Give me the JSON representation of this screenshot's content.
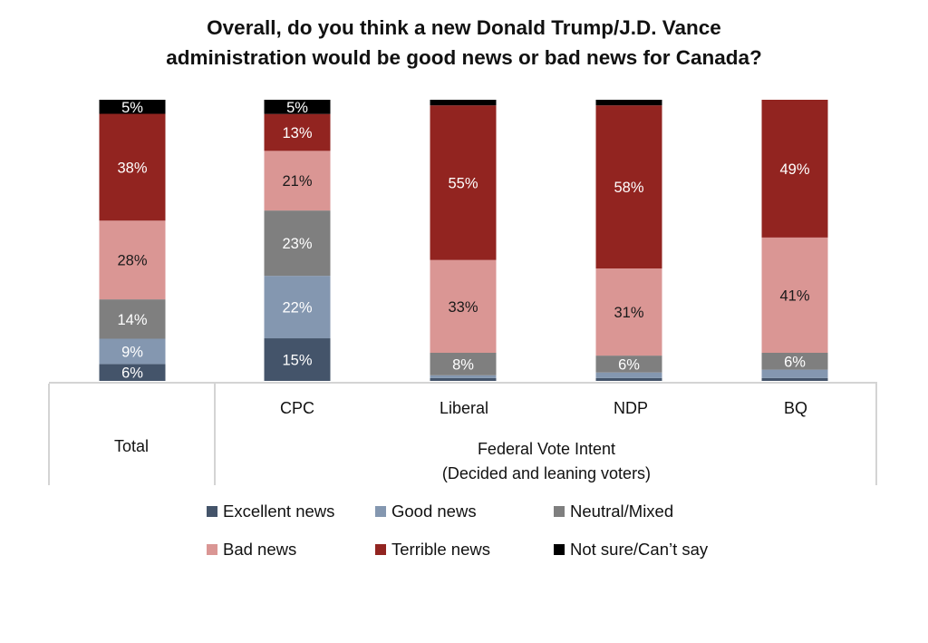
{
  "chart_data": {
    "type": "bar",
    "stacked": true,
    "orientation": "vertical",
    "title": "Overall, do you think a new Donald Trump/J.D. Vance administration would be good news or bad news for Canada?",
    "title_lines": [
      "Overall, do you think a new Donald Trump/J.D. Vance",
      "administration would be good news or bad news for Canada?"
    ],
    "xlabel": "",
    "ylabel": "",
    "ylim": [
      0,
      100
    ],
    "unit": "%",
    "grid": false,
    "categories": [
      "Total",
      "CPC",
      "Liberal",
      "NDP",
      "BQ"
    ],
    "category_groups": [
      {
        "label": "Total",
        "categories": [
          "Total"
        ]
      },
      {
        "label_lines": [
          "Federal Vote Intent",
          "(Decided and leaning voters)"
        ],
        "categories": [
          "CPC",
          "Liberal",
          "NDP",
          "BQ"
        ]
      }
    ],
    "series": [
      {
        "name": "Excellent news",
        "color": "#44546a",
        "label_color": "#ffffff",
        "values": [
          6,
          15,
          1,
          1,
          1
        ],
        "labels": [
          "6%",
          "15%",
          "",
          "",
          ""
        ]
      },
      {
        "name": "Good news",
        "color": "#8497b0",
        "label_color": "#ffffff",
        "values": [
          9,
          22,
          1,
          2,
          3
        ],
        "labels": [
          "9%",
          "22%",
          "",
          "",
          ""
        ]
      },
      {
        "name": "Neutral/Mixed",
        "color": "#7f7f7f",
        "label_color": "#ffffff",
        "values": [
          14,
          23,
          8,
          6,
          6
        ],
        "labels": [
          "14%",
          "23%",
          "8%",
          "6%",
          "6%"
        ]
      },
      {
        "name": "Bad news",
        "color": "#da9694",
        "label_color": "#1a1a1a",
        "values": [
          28,
          21,
          33,
          31,
          41
        ],
        "labels": [
          "28%",
          "21%",
          "33%",
          "31%",
          "41%"
        ]
      },
      {
        "name": "Terrible news",
        "color": "#922420",
        "label_color": "#ffffff",
        "values": [
          38,
          13,
          55,
          58,
          49
        ],
        "labels": [
          "38%",
          "13%",
          "55%",
          "58%",
          "49%"
        ]
      },
      {
        "name": "Not sure/Can’t say",
        "color": "#000000",
        "label_color": "#ffffff",
        "values": [
          5,
          5,
          2,
          2,
          0
        ],
        "labels": [
          "5%",
          "5%",
          "",
          "",
          ""
        ]
      }
    ],
    "legend": {
      "position": "bottom",
      "columns": 3
    }
  }
}
